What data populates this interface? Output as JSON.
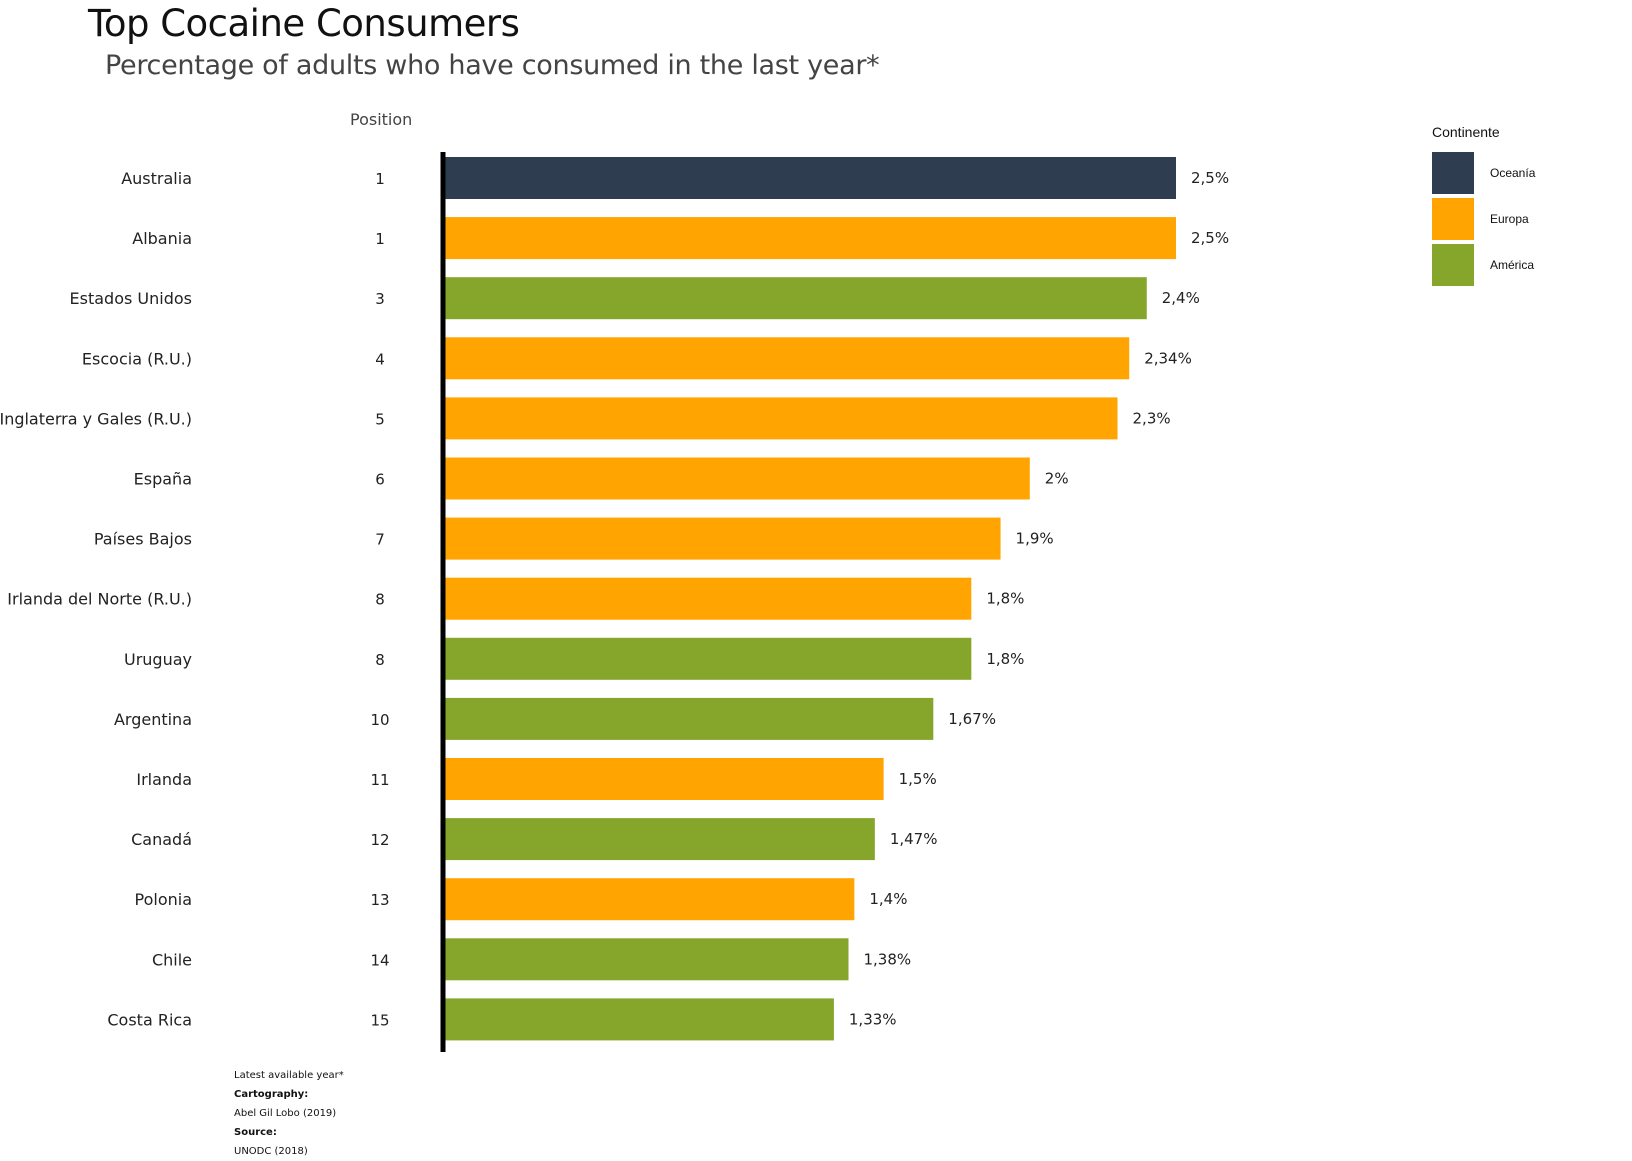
{
  "chart_data": {
    "type": "bar",
    "orientation": "horizontal",
    "title": "Top Cocaine Consumers",
    "subtitle": "Percentage of adults who have consumed in the last year*",
    "position_header": "Position",
    "xlabel": "",
    "ylabel": "",
    "xlim": [
      0,
      2.5
    ],
    "grid": false,
    "legend": {
      "title": "Continente",
      "placement": "right",
      "entries": [
        {
          "label": "Oceanía",
          "color": "#2e3e50"
        },
        {
          "label": "Europa",
          "color": "#ffa400"
        },
        {
          "label": "América",
          "color": "#86a52b"
        }
      ]
    },
    "rows": [
      {
        "country": "Australia",
        "position": "1",
        "value": 2.5,
        "label": "2,5%",
        "continent": "Oceanía"
      },
      {
        "country": "Albania",
        "position": "1",
        "value": 2.5,
        "label": "2,5%",
        "continent": "Europa"
      },
      {
        "country": "Estados Unidos",
        "position": "3",
        "value": 2.4,
        "label": "2,4%",
        "continent": "América"
      },
      {
        "country": "Escocia (R.U.)",
        "position": "4",
        "value": 2.34,
        "label": "2,34%",
        "continent": "Europa"
      },
      {
        "country": "Inglaterra y Gales (R.U.)",
        "position": "5",
        "value": 2.3,
        "label": "2,3%",
        "continent": "Europa"
      },
      {
        "country": "España",
        "position": "6",
        "value": 2.0,
        "label": "2%",
        "continent": "Europa"
      },
      {
        "country": "Países Bajos",
        "position": "7",
        "value": 1.9,
        "label": "1,9%",
        "continent": "Europa"
      },
      {
        "country": "Irlanda del Norte (R.U.)",
        "position": "8",
        "value": 1.8,
        "label": "1,8%",
        "continent": "Europa"
      },
      {
        "country": "Uruguay",
        "position": "8",
        "value": 1.8,
        "label": "1,8%",
        "continent": "América"
      },
      {
        "country": "Argentina",
        "position": "10",
        "value": 1.67,
        "label": "1,67%",
        "continent": "América"
      },
      {
        "country": "Irlanda",
        "position": "11",
        "value": 1.5,
        "label": "1,5%",
        "continent": "Europa"
      },
      {
        "country": "Canadá",
        "position": "12",
        "value": 1.47,
        "label": "1,47%",
        "continent": "América"
      },
      {
        "country": "Polonia",
        "position": "13",
        "value": 1.4,
        "label": "1,4%",
        "continent": "Europa"
      },
      {
        "country": "Chile",
        "position": "14",
        "value": 1.38,
        "label": "1,38%",
        "continent": "América"
      },
      {
        "country": "Costa Rica",
        "position": "15",
        "value": 1.33,
        "label": "1,33%",
        "continent": "América"
      }
    ]
  },
  "caption": {
    "note": "Latest available year*",
    "cartography_label": "Cartography:",
    "cartography_value": "Abel Gil Lobo (2019)",
    "source_label": "Source:",
    "source_value": "UNODC (2018)"
  }
}
